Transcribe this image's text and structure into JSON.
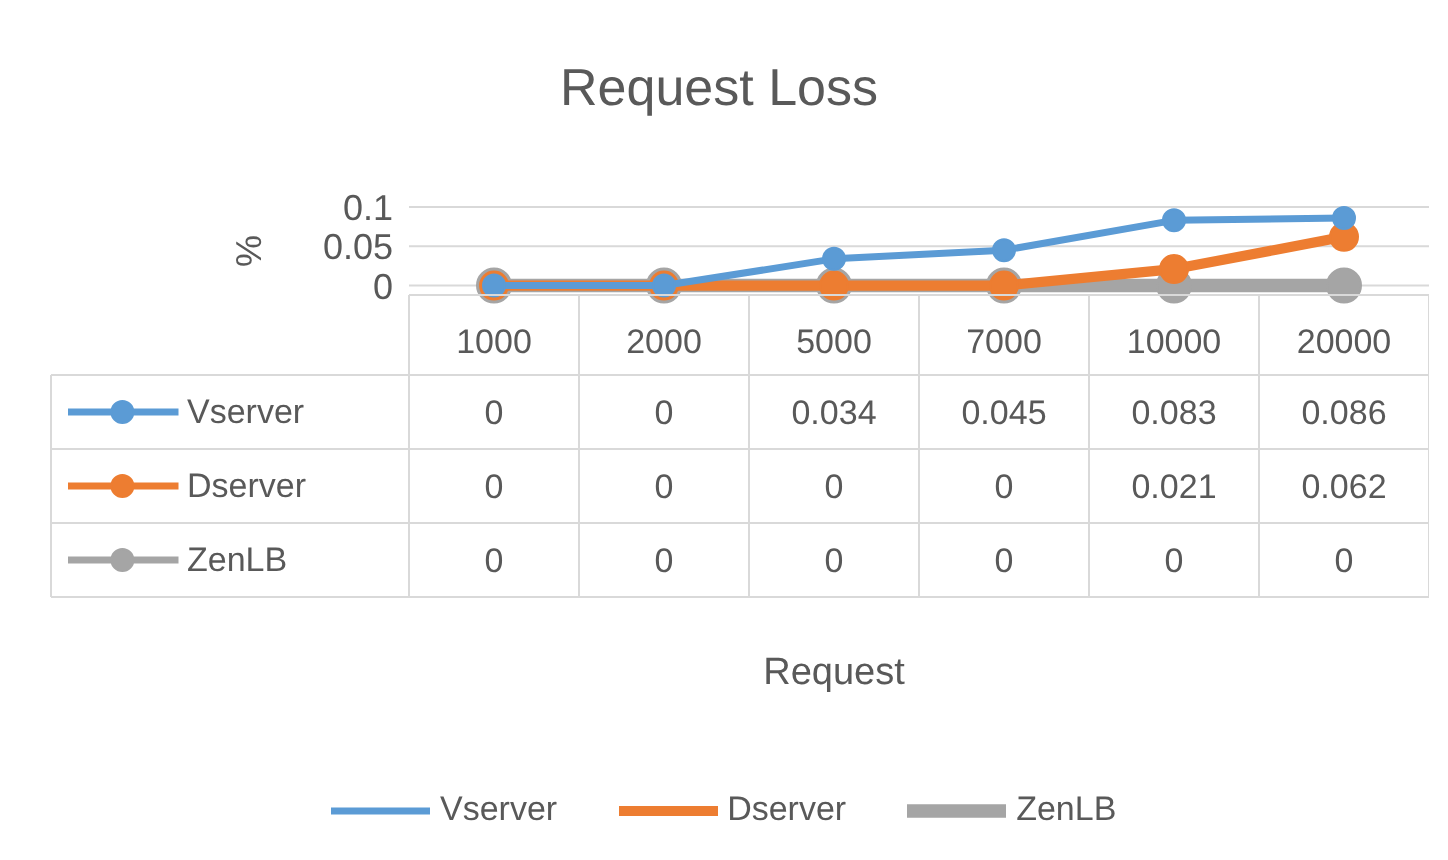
{
  "chart_data": {
    "type": "line",
    "title": "Request Loss",
    "annotations": [
      "Request"
    ],
    "ylabel": "%",
    "categories": [
      "1000",
      "2000",
      "5000",
      "7000",
      "10000",
      "20000"
    ],
    "series": [
      {
        "name": "Vserver",
        "color": "#5b9bd5",
        "values": [
          0,
          0,
          0.034,
          0.045,
          0.083,
          0.086
        ]
      },
      {
        "name": "Dserver",
        "color": "#ed7d31",
        "values": [
          0,
          0,
          0,
          0,
          0.021,
          0.062
        ]
      },
      {
        "name": "ZenLB",
        "color": "#a5a5a5",
        "values": [
          0,
          0,
          0,
          0,
          0,
          0
        ]
      }
    ],
    "ylim": [
      -0.012,
      0.1
    ],
    "yticks": [
      0,
      0.05,
      0.1
    ],
    "grid": "y",
    "marker": "circle",
    "data_labels": true,
    "legend": "bottom"
  }
}
